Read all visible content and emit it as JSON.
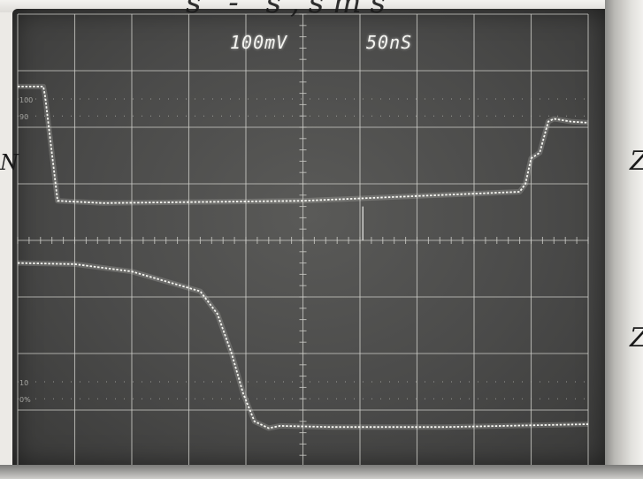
{
  "scope": {
    "volts_per_div": "100mV",
    "time_per_div": "50nS",
    "graticule": {
      "cols": 10,
      "rows": 8,
      "minor_ticks_per_div": 5
    },
    "colors": {
      "screen": "#4a4a49",
      "grid": "#cfcfca",
      "trace": "#f7f7f2"
    },
    "traces": [
      {
        "name": "",
        "points": [
          [
            0.0,
            6.72
          ],
          [
            0.45,
            6.72
          ],
          [
            0.48,
            6.55
          ],
          [
            0.7,
            4.7
          ],
          [
            1.5,
            4.66
          ],
          [
            5.0,
            4.7
          ],
          [
            8.8,
            4.86
          ],
          [
            8.9,
            5.0
          ],
          [
            9.0,
            5.45
          ],
          [
            9.15,
            5.55
          ],
          [
            9.3,
            6.1
          ],
          [
            9.4,
            6.15
          ],
          [
            9.7,
            6.1
          ],
          [
            10.0,
            6.08
          ]
        ]
      },
      {
        "name": "",
        "points": [
          [
            0.0,
            3.6
          ],
          [
            1.0,
            3.58
          ],
          [
            2.0,
            3.45
          ],
          [
            3.2,
            3.1
          ],
          [
            3.5,
            2.7
          ],
          [
            3.75,
            2.0
          ],
          [
            3.95,
            1.3
          ],
          [
            4.15,
            0.8
          ],
          [
            4.4,
            0.68
          ],
          [
            4.6,
            0.72
          ],
          [
            5.5,
            0.7
          ],
          [
            7.5,
            0.7
          ],
          [
            10.0,
            0.75
          ]
        ]
      }
    ],
    "cursor": {
      "x_div": 6.05,
      "from_div": 4.6,
      "to_div": 4.0
    },
    "left_marks": [
      "100",
      "90",
      "10",
      "0%"
    ]
  },
  "handwriting": {
    "top_partial": "s - s,sms",
    "left_partial": "N",
    "right_partials": [
      "Z",
      "Z"
    ]
  }
}
